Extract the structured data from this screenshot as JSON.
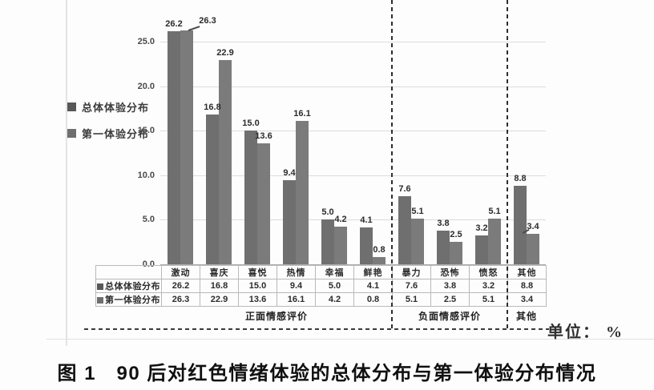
{
  "figure": {
    "caption": "图 1　90 后对红色情绪体验的总体分布与第一体验分布情况",
    "unit_label": "单位： %"
  },
  "chart_data": {
    "type": "bar",
    "title": "",
    "xlabel": "",
    "ylabel": "",
    "unit": "%",
    "categories": [
      "激动",
      "喜庆",
      "喜悦",
      "热情",
      "幸福",
      "鲜艳",
      "暴力",
      "恐怖",
      "愤怒",
      "其他"
    ],
    "series": [
      {
        "name": "总体体验分布",
        "values": [
          26.2,
          16.8,
          15.0,
          9.4,
          5.0,
          4.1,
          7.6,
          3.8,
          3.2,
          8.8
        ]
      },
      {
        "name": "第一体验分布",
        "values": [
          26.3,
          22.9,
          13.6,
          16.1,
          4.2,
          0.8,
          5.1,
          2.5,
          5.1,
          3.4
        ]
      }
    ],
    "groups": [
      {
        "label": "正面情感评价",
        "start": 0,
        "end": 5
      },
      {
        "label": "负面情感评价",
        "start": 6,
        "end": 8
      },
      {
        "label": "其他",
        "start": 9,
        "end": 9
      }
    ],
    "yticks": [
      0,
      5,
      10,
      15,
      20,
      25
    ],
    "ylim": [
      0,
      30
    ],
    "grid": true,
    "legend_position": "left",
    "show_data_table": true,
    "bar_colors": [
      "#6f6f6f",
      "#7b7b7b"
    ],
    "swatch_colors": [
      "#585858",
      "#6e6e6e"
    ]
  }
}
